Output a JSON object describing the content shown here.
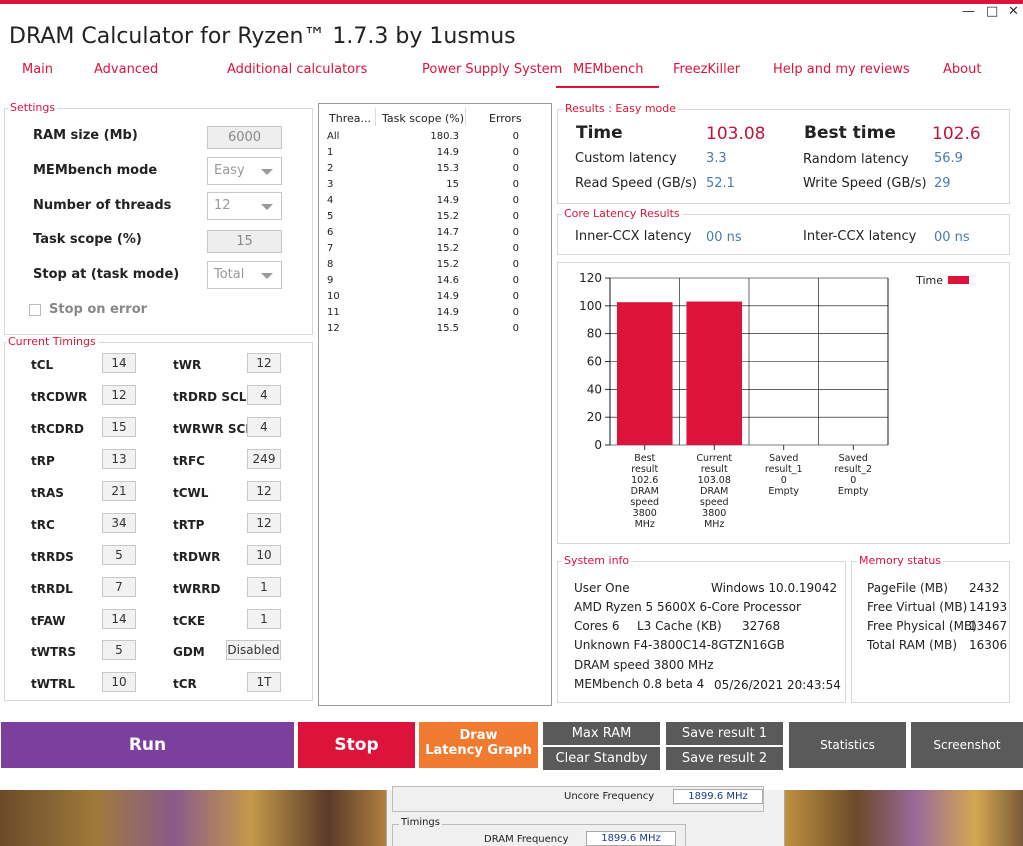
{
  "window": {
    "title": "DRAM Calculator for Ryzen™ 1.7.3 by 1usmus",
    "minimize": "—",
    "maximize": "□",
    "close": "✕"
  },
  "nav": {
    "tabs": [
      "Main",
      "Advanced",
      "Additional calculators",
      "Power Supply System",
      "MEMbench",
      "FreezKiller",
      "Help and my reviews",
      "About"
    ],
    "active": "MEMbench"
  },
  "settings": {
    "group_label": "Settings",
    "ram_size_label": "RAM size (Mb)",
    "ram_size_value": "6000",
    "mode_label": "MEMbench mode",
    "mode_value": "Easy",
    "threads_label": "Number of threads",
    "threads_value": "12",
    "task_scope_label": "Task scope (%)",
    "task_scope_value": "15",
    "stop_at_label": "Stop at (task mode)",
    "stop_at_value": "Total",
    "stop_on_error_label": "Stop on error",
    "stop_on_error_checked": false
  },
  "timings": {
    "group_label": "Current Timings",
    "left": [
      {
        "name": "tCL",
        "value": "14"
      },
      {
        "name": "tRCDWR",
        "value": "12"
      },
      {
        "name": "tRCDRD",
        "value": "15"
      },
      {
        "name": "tRP",
        "value": "13"
      },
      {
        "name": "tRAS",
        "value": "21"
      },
      {
        "name": "tRC",
        "value": "34"
      },
      {
        "name": "tRRDS",
        "value": "5"
      },
      {
        "name": "tRRDL",
        "value": "7"
      },
      {
        "name": "tFAW",
        "value": "14"
      },
      {
        "name": "tWTRS",
        "value": "5"
      },
      {
        "name": "tWTRL",
        "value": "10"
      }
    ],
    "right": [
      {
        "name": "tWR",
        "value": "12"
      },
      {
        "name": "tRDRD SCL",
        "value": "4"
      },
      {
        "name": "tWRWR SCL",
        "value": "4"
      },
      {
        "name": "tRFC",
        "value": "249"
      },
      {
        "name": "tCWL",
        "value": "12"
      },
      {
        "name": "tRTP",
        "value": "12"
      },
      {
        "name": "tRDWR",
        "value": "10"
      },
      {
        "name": "tWRRD",
        "value": "1"
      },
      {
        "name": "tCKE",
        "value": "1"
      },
      {
        "name": "GDM",
        "value": "Disabled"
      },
      {
        "name": "tCR",
        "value": "1T"
      }
    ]
  },
  "threads_table": {
    "headers": [
      "Threa...",
      "Task scope (%)",
      "Errors"
    ],
    "rows": [
      [
        "All",
        "180.3",
        "0"
      ],
      [
        "1",
        "14.9",
        "0"
      ],
      [
        "2",
        "15.3",
        "0"
      ],
      [
        "3",
        "15",
        "0"
      ],
      [
        "4",
        "14.9",
        "0"
      ],
      [
        "5",
        "15.2",
        "0"
      ],
      [
        "6",
        "14.7",
        "0"
      ],
      [
        "7",
        "15.2",
        "0"
      ],
      [
        "8",
        "15.2",
        "0"
      ],
      [
        "9",
        "14.6",
        "0"
      ],
      [
        "10",
        "14.9",
        "0"
      ],
      [
        "11",
        "14.9",
        "0"
      ],
      [
        "12",
        "15.5",
        "0"
      ]
    ]
  },
  "results": {
    "group_label": "Results : Easy mode",
    "time_label": "Time",
    "time_value": "103.08",
    "best_time_label": "Best time",
    "best_time_value": "102.6",
    "custom_latency_label": "Custom latency",
    "custom_latency_value": "3.3",
    "random_latency_label": "Random latency",
    "random_latency_value": "56.9",
    "read_speed_label": "Read Speed (GB/s)",
    "read_speed_value": "52.1",
    "write_speed_label": "Write Speed (GB/s)",
    "write_speed_value": "29"
  },
  "core_latency": {
    "group_label": "Core Latency Results",
    "inner_label": "Inner-CCX latency",
    "inner_value": "00 ns",
    "inter_label": "Inter-CCX latency",
    "inter_value": "00 ns"
  },
  "chart_data": {
    "type": "bar",
    "series": [
      {
        "name": "Time",
        "values": [
          102.6,
          103.08,
          0,
          0
        ]
      }
    ],
    "categories": [
      [
        "Best",
        "result",
        "102.6",
        "DRAM",
        "speed",
        "3800",
        "MHz"
      ],
      [
        "Current",
        "result",
        "103.08",
        "DRAM",
        "speed",
        "3800",
        "MHz"
      ],
      [
        "Saved",
        "result_1",
        "0",
        "Empty"
      ],
      [
        "Saved",
        "result_2",
        "0",
        "Empty"
      ]
    ],
    "yticks": [
      "0",
      "20",
      "40",
      "60",
      "80",
      "100",
      "120"
    ],
    "ylim": [
      0,
      120
    ],
    "grid": true,
    "legend": "top-right",
    "bar_color": "#dc143c"
  },
  "system_info": {
    "group_label": "System info",
    "user": "User One",
    "os": "Windows 10.0.19042",
    "cpu": "AMD Ryzen 5 5600X 6-Core Processor",
    "cores": "Cores 6",
    "l3_label": "L3 Cache (KB)",
    "l3_value": "32768",
    "memory_part": "Unknown F4-3800C14-8GTZN16GB",
    "dram_speed": "DRAM speed 3800 MHz",
    "version": "MEMbench 0.8 beta 4",
    "datetime": "05/26/2021 20:43:54"
  },
  "memory_status": {
    "group_label": "Memory status",
    "items": [
      {
        "label": "PageFile (MB)",
        "value": "2432"
      },
      {
        "label": "Free Virtual (MB)",
        "value": "14193"
      },
      {
        "label": "Free Physical (MB)",
        "value": "13467"
      },
      {
        "label": "Total RAM (MB)",
        "value": "16306"
      }
    ]
  },
  "buttons": {
    "run": "Run",
    "stop": "Stop",
    "draw_latency_1": "Draw",
    "draw_latency_2": "Latency Graph",
    "max_ram": "Max RAM",
    "clear_standby": "Clear Standby",
    "save_result_1": "Save result 1",
    "save_result_2": "Save result 2",
    "statistics": "Statistics",
    "screenshot": "Screenshot"
  },
  "colors": {
    "accent": "#dc143c",
    "run": "#7b3f9e",
    "stop": "#dc143c",
    "draw": "#f07a30",
    "dark": "#5a5a5a"
  },
  "background_window": {
    "uncore_label": "Uncore Frequency",
    "uncore_value": "1899.6 MHz",
    "timings_label": "Timings",
    "dram_freq_label": "DRAM Frequency",
    "dram_freq_value": "1899.6 MHz"
  }
}
